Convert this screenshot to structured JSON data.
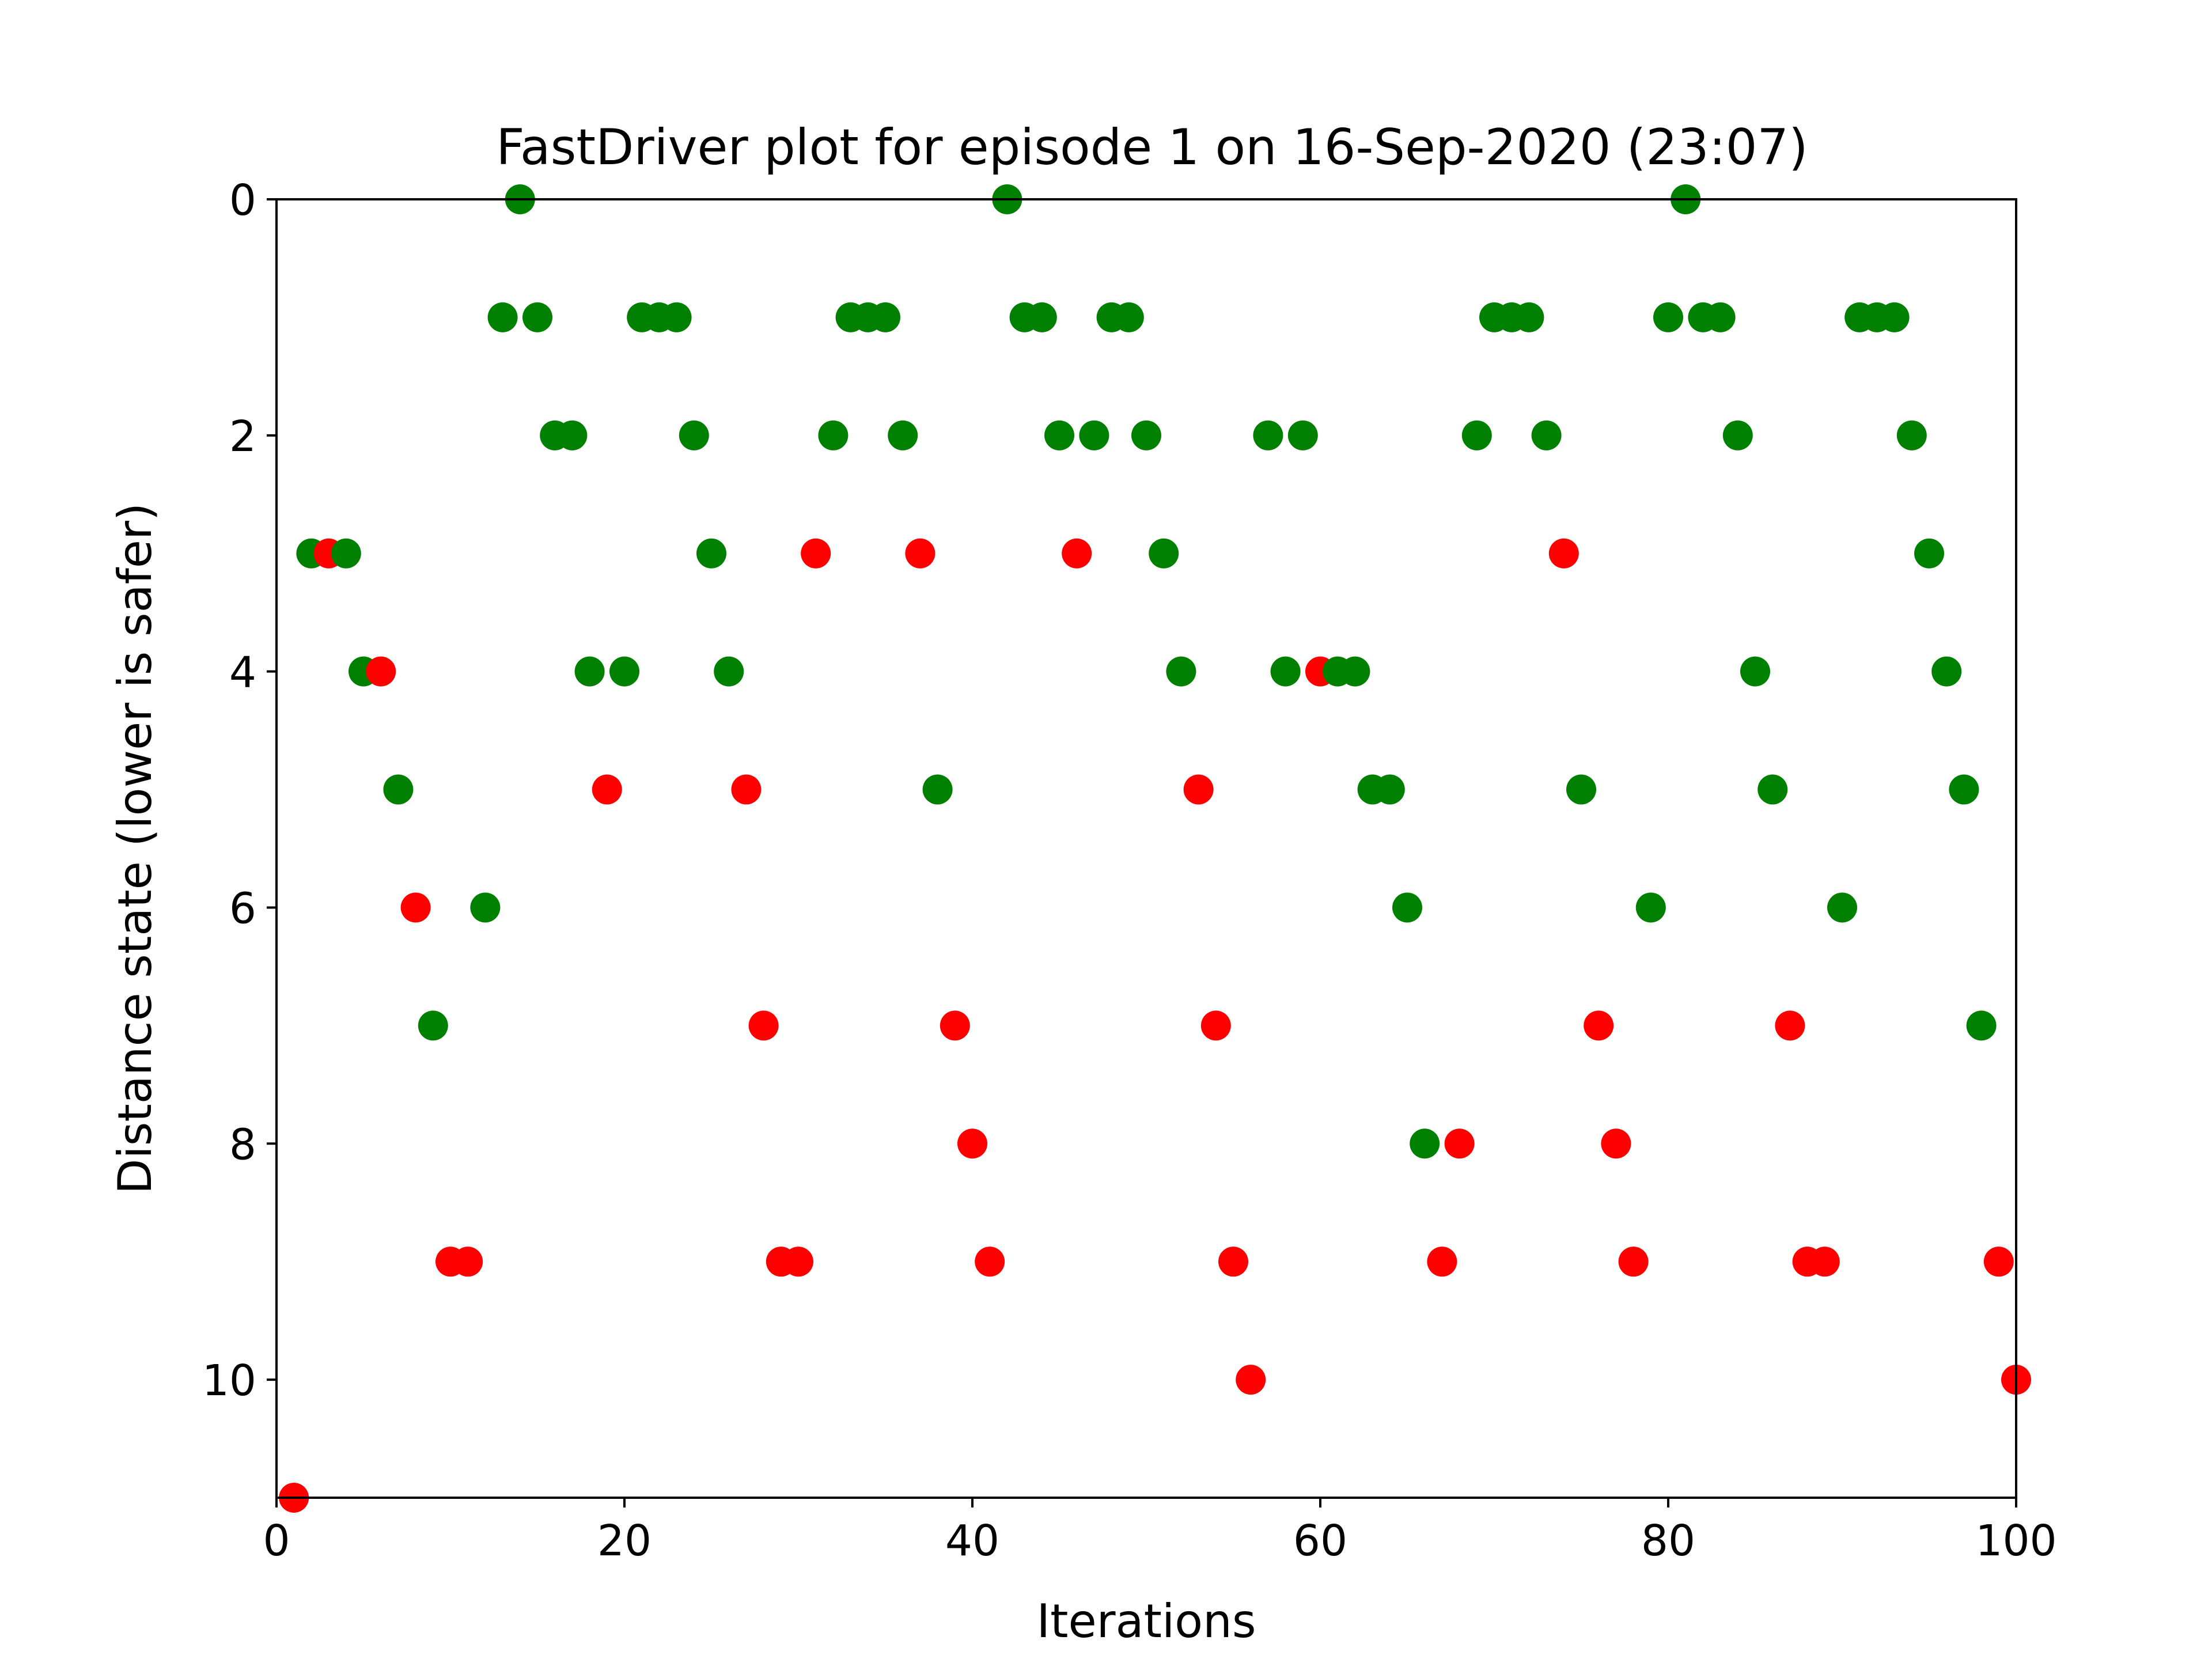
{
  "chart_data": {
    "type": "scatter",
    "title": "FastDriver plot for episode 1 on 16-Sep-2020 (23:07)",
    "xlabel": "Iterations",
    "ylabel": "Distance state (lower is safer)",
    "xlim": [
      0,
      100
    ],
    "ylim": [
      11,
      0
    ],
    "y_axis_inverted": true,
    "x_ticks": [
      0,
      20,
      40,
      60,
      80,
      100
    ],
    "y_ticks": [
      0,
      2,
      4,
      6,
      8,
      10
    ],
    "grid": false,
    "legend": "none",
    "colors": {
      "green": "#008000",
      "red": "#ff0000"
    },
    "points": [
      [
        1,
        11,
        "red"
      ],
      [
        2,
        3,
        "green"
      ],
      [
        3,
        3,
        "red"
      ],
      [
        4,
        3,
        "green"
      ],
      [
        5,
        4,
        "green"
      ],
      [
        6,
        4,
        "red"
      ],
      [
        7,
        5,
        "green"
      ],
      [
        8,
        6,
        "red"
      ],
      [
        9,
        7,
        "green"
      ],
      [
        10,
        9,
        "red"
      ],
      [
        11,
        9,
        "red"
      ],
      [
        12,
        6,
        "green"
      ],
      [
        13,
        1,
        "green"
      ],
      [
        14,
        0,
        "green"
      ],
      [
        15,
        1,
        "green"
      ],
      [
        16,
        2,
        "green"
      ],
      [
        17,
        2,
        "green"
      ],
      [
        18,
        4,
        "green"
      ],
      [
        19,
        5,
        "red"
      ],
      [
        20,
        4,
        "green"
      ],
      [
        21,
        1,
        "green"
      ],
      [
        22,
        1,
        "green"
      ],
      [
        23,
        1,
        "green"
      ],
      [
        24,
        2,
        "green"
      ],
      [
        25,
        3,
        "green"
      ],
      [
        26,
        4,
        "green"
      ],
      [
        27,
        5,
        "red"
      ],
      [
        28,
        7,
        "red"
      ],
      [
        29,
        9,
        "red"
      ],
      [
        30,
        9,
        "red"
      ],
      [
        31,
        3,
        "red"
      ],
      [
        32,
        2,
        "green"
      ],
      [
        33,
        1,
        "green"
      ],
      [
        34,
        1,
        "green"
      ],
      [
        35,
        1,
        "green"
      ],
      [
        36,
        2,
        "green"
      ],
      [
        37,
        3,
        "red"
      ],
      [
        38,
        5,
        "green"
      ],
      [
        39,
        7,
        "red"
      ],
      [
        40,
        8,
        "red"
      ],
      [
        41,
        9,
        "red"
      ],
      [
        42,
        0,
        "green"
      ],
      [
        43,
        1,
        "green"
      ],
      [
        44,
        1,
        "green"
      ],
      [
        45,
        2,
        "green"
      ],
      [
        46,
        3,
        "red"
      ],
      [
        47,
        2,
        "green"
      ],
      [
        48,
        1,
        "green"
      ],
      [
        49,
        1,
        "green"
      ],
      [
        50,
        2,
        "green"
      ],
      [
        51,
        3,
        "green"
      ],
      [
        52,
        4,
        "green"
      ],
      [
        53,
        5,
        "red"
      ],
      [
        54,
        7,
        "red"
      ],
      [
        55,
        9,
        "red"
      ],
      [
        56,
        10,
        "red"
      ],
      [
        57,
        2,
        "green"
      ],
      [
        58,
        4,
        "green"
      ],
      [
        59,
        2,
        "green"
      ],
      [
        60,
        4,
        "red"
      ],
      [
        61,
        4,
        "green"
      ],
      [
        62,
        4,
        "green"
      ],
      [
        63,
        5,
        "green"
      ],
      [
        64,
        5,
        "green"
      ],
      [
        65,
        6,
        "green"
      ],
      [
        66,
        8,
        "green"
      ],
      [
        67,
        9,
        "red"
      ],
      [
        68,
        8,
        "red"
      ],
      [
        69,
        2,
        "green"
      ],
      [
        70,
        1,
        "green"
      ],
      [
        71,
        1,
        "green"
      ],
      [
        72,
        1,
        "green"
      ],
      [
        73,
        2,
        "green"
      ],
      [
        74,
        3,
        "red"
      ],
      [
        75,
        5,
        "green"
      ],
      [
        76,
        7,
        "red"
      ],
      [
        77,
        8,
        "red"
      ],
      [
        78,
        9,
        "red"
      ],
      [
        79,
        6,
        "green"
      ],
      [
        80,
        1,
        "green"
      ],
      [
        81,
        0,
        "green"
      ],
      [
        82,
        1,
        "green"
      ],
      [
        83,
        1,
        "green"
      ],
      [
        84,
        2,
        "green"
      ],
      [
        85,
        4,
        "green"
      ],
      [
        86,
        5,
        "green"
      ],
      [
        87,
        7,
        "red"
      ],
      [
        88,
        9,
        "red"
      ],
      [
        89,
        9,
        "red"
      ],
      [
        90,
        6,
        "green"
      ],
      [
        91,
        1,
        "green"
      ],
      [
        92,
        1,
        "green"
      ],
      [
        93,
        1,
        "green"
      ],
      [
        94,
        2,
        "green"
      ],
      [
        95,
        3,
        "green"
      ],
      [
        96,
        4,
        "green"
      ],
      [
        97,
        5,
        "green"
      ],
      [
        98,
        7,
        "green"
      ],
      [
        99,
        9,
        "red"
      ],
      [
        100,
        10,
        "red"
      ]
    ]
  }
}
